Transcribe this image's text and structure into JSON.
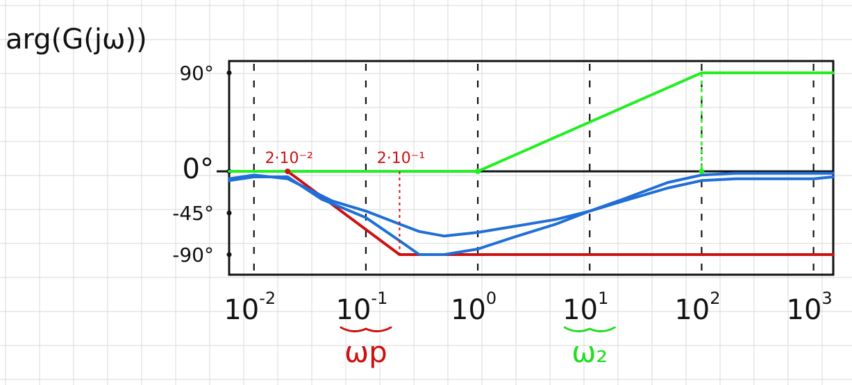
{
  "chart_data": {
    "type": "line",
    "ylabel": "arg(G(jω))",
    "xscale": "log",
    "xlim": [
      0.006,
      1500
    ],
    "ylim": [
      -100,
      100
    ],
    "grid": true,
    "y_ticks": [
      {
        "value": 90,
        "label": "90°"
      },
      {
        "value": 0,
        "label": "0°"
      },
      {
        "value": -45,
        "label": "-45°"
      },
      {
        "value": -90,
        "label": "-90°"
      }
    ],
    "x_ticks": [
      {
        "value": 0.01,
        "base": "10",
        "exp": "-2"
      },
      {
        "value": 0.1,
        "base": "10",
        "exp": "-1"
      },
      {
        "value": 1,
        "base": "10",
        "exp": "0"
      },
      {
        "value": 10,
        "base": "10",
        "exp": "1"
      },
      {
        "value": 100,
        "base": "10",
        "exp": "2"
      },
      {
        "value": 1000,
        "base": "10",
        "exp": "3"
      }
    ],
    "annotations": [
      {
        "text": "2·10⁻²",
        "x": 0.02,
        "color": "#cc1111"
      },
      {
        "text": "2·10⁻¹",
        "x": 0.2,
        "color": "#cc1111"
      }
    ],
    "brace_labels": [
      {
        "text": "ωp",
        "x": 0.1,
        "color": "#cc1111"
      },
      {
        "text": "ω₂",
        "x": 10,
        "color": "#22dd22"
      }
    ],
    "series": [
      {
        "color": "#cc1111",
        "x": [
          0.006,
          0.02,
          0.2,
          1500
        ],
        "y": [
          0,
          0,
          -90,
          -90
        ]
      },
      {
        "color": "#22ee22",
        "x": [
          0.006,
          1,
          100,
          1500
        ],
        "y": [
          0,
          0,
          90,
          90
        ]
      },
      {
        "color": "#1f6fd6",
        "x": [
          0.006,
          0.01,
          0.02,
          0.05,
          0.1,
          0.2,
          0.3,
          0.5,
          1,
          2,
          5,
          10,
          20,
          50,
          100,
          200,
          500,
          1000,
          1500
        ],
        "y": [
          -8,
          -4,
          -8,
          -32,
          -43,
          -57,
          -65,
          -70,
          -66,
          -60,
          -52,
          -43,
          -32,
          -18,
          -10,
          -8,
          -8,
          -8,
          -6
        ]
      },
      {
        "color": "#1f6fd6",
        "x": [
          0.006,
          0.01,
          0.02,
          0.04,
          0.1,
          0.2,
          0.3,
          0.5,
          1,
          2,
          5,
          10,
          20,
          50,
          100,
          200,
          500,
          1000,
          1500
        ],
        "y": [
          -10,
          -6,
          -6,
          -30,
          -50,
          -75,
          -90,
          -90,
          -84,
          -72,
          -57,
          -43,
          -30,
          -12,
          -4,
          -2,
          -2,
          -2,
          -2
        ]
      }
    ]
  }
}
